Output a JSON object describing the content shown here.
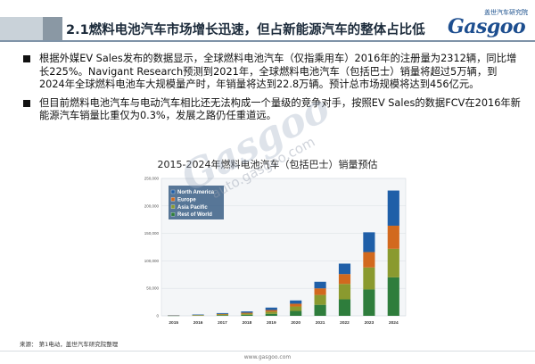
{
  "header": {
    "title": "2.1燃料电池汽车市场增长迅速，但占新能源汽车的整体占比低",
    "logo_cn": "盖世汽车研究院",
    "logo_en": "Gasgoo"
  },
  "bullets": [
    "根据外媒EV Sales发布的数据显示，全球燃料电池汽车（仅指乘用车）2016年的注册量为2312辆，同比增长225%。Navigant Research预测到2021年，全球燃料电池汽车（包括巴士）销量将超过5万辆，到2024年全球燃料电池车大规模量产时，年销量将达到22.8万辆。预计总市场规模将达到456亿元。",
    "但目前燃料电池汽车与电动汽车相比还无法构成一个量级的竞争对手，按照EV Sales的数据FCV在2016年新能源汽车销量比重仅为0.3%，发展之路仍任重道远。"
  ],
  "watermark": {
    "brand": "Gasgoo",
    "url": "auto.gasgoo.com"
  },
  "source": "来源：  第1电动，盖世汽车研究院整理",
  "footer_url": "www.gasgoo.com",
  "chart_data": {
    "type": "bar",
    "stacked": true,
    "title": "2015-2024年燃料电池汽车（包括巴士）销量预估",
    "categories": [
      "2015",
      "2016",
      "2017",
      "2018",
      "2019",
      "2020",
      "2021",
      "2022",
      "2023",
      "2024"
    ],
    "ylim": [
      0,
      250000
    ],
    "yticks": [
      "0",
      "50,000",
      "100,000",
      "150,000",
      "200,000",
      "250,000"
    ],
    "grid": true,
    "legend_position": "top-left",
    "series": [
      {
        "name": "Rest of World",
        "color": "#2e7d3c",
        "values": [
          200,
          600,
          1200,
          1800,
          3500,
          9000,
          20000,
          30000,
          48000,
          70000
        ]
      },
      {
        "name": "Asia Pacific",
        "color": "#8a9a2f",
        "values": [
          300,
          700,
          1300,
          2200,
          4000,
          8000,
          18000,
          28000,
          40000,
          52000
        ]
      },
      {
        "name": "Europe",
        "color": "#d2691e",
        "values": [
          200,
          500,
          1000,
          1600,
          3000,
          5000,
          12000,
          18000,
          28000,
          42000
        ]
      },
      {
        "name": "North America",
        "color": "#1f5fa8",
        "values": [
          300,
          700,
          1500,
          2400,
          4500,
          6000,
          12000,
          19000,
          36000,
          64000
        ]
      }
    ]
  }
}
